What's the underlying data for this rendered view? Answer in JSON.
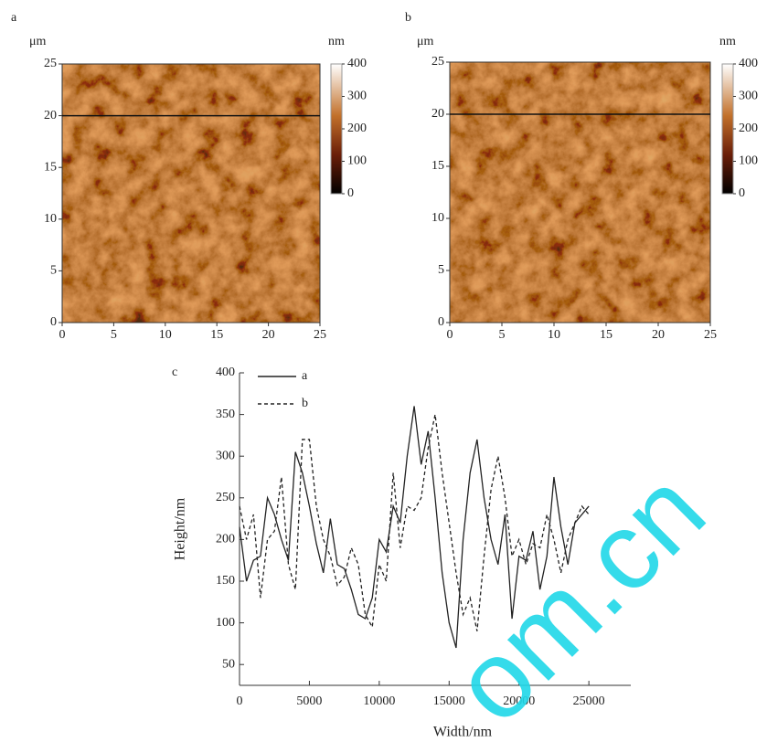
{
  "chart_data": [
    {
      "type": "image",
      "panel": "a",
      "y_unit": "μm",
      "colorbar_unit": "nm",
      "xlim": [
        0,
        25
      ],
      "ylim": [
        0,
        25
      ],
      "xticks": [
        0,
        5,
        10,
        15,
        20,
        25
      ],
      "yticks": [
        0,
        5,
        10,
        15,
        20,
        25
      ],
      "colorbar_lim": [
        0,
        400
      ],
      "colorbar_ticks": [
        0,
        100,
        200,
        300,
        400
      ],
      "profile_y": 20
    },
    {
      "type": "image",
      "panel": "b",
      "y_unit": "μm",
      "colorbar_unit": "nm",
      "xlim": [
        0,
        25
      ],
      "ylim": [
        0,
        25
      ],
      "xticks": [
        0,
        5,
        10,
        15,
        20,
        25
      ],
      "yticks": [
        0,
        5,
        10,
        15,
        20,
        25
      ],
      "colorbar_lim": [
        0,
        400
      ],
      "colorbar_ticks": [
        0,
        100,
        200,
        300,
        400
      ],
      "profile_y": 20
    },
    {
      "type": "line",
      "panel": "c",
      "x_label": "Width/nm",
      "y_label": "Height/nm",
      "xlim": [
        0,
        28000
      ],
      "ylim": [
        25,
        400
      ],
      "xticks": [
        0,
        5000,
        10000,
        15000,
        20000,
        25000
      ],
      "yticks": [
        50,
        100,
        150,
        200,
        250,
        300,
        350,
        400
      ],
      "x": [
        0,
        500,
        1000,
        1500,
        2000,
        2500,
        3000,
        3500,
        4000,
        4500,
        5000,
        5500,
        6000,
        6500,
        7000,
        7500,
        8000,
        8500,
        9000,
        9500,
        10000,
        10500,
        11000,
        11500,
        12000,
        12500,
        13000,
        13500,
        14000,
        14500,
        15000,
        15500,
        16000,
        16500,
        17000,
        17500,
        18000,
        18500,
        19000,
        19500,
        20000,
        20500,
        21000,
        21500,
        22000,
        22500,
        23000,
        23500,
        24000,
        24500,
        25000
      ],
      "series": [
        {
          "name": "a",
          "color": "#222222",
          "dash": false,
          "values": [
            215,
            150,
            175,
            180,
            250,
            230,
            200,
            175,
            305,
            280,
            240,
            195,
            160,
            225,
            170,
            165,
            140,
            110,
            105,
            130,
            200,
            185,
            240,
            220,
            300,
            360,
            290,
            330,
            250,
            160,
            100,
            70,
            200,
            280,
            320,
            250,
            200,
            170,
            230,
            105,
            180,
            175,
            210,
            140,
            180,
            275,
            215,
            170,
            220,
            230,
            240
          ]
        },
        {
          "name": "b",
          "color": "#222222",
          "dash": true,
          "values": [
            240,
            200,
            230,
            130,
            200,
            210,
            275,
            170,
            140,
            320,
            320,
            240,
            200,
            180,
            145,
            155,
            190,
            170,
            110,
            95,
            170,
            150,
            280,
            190,
            240,
            235,
            250,
            310,
            350,
            280,
            220,
            160,
            110,
            130,
            90,
            180,
            260,
            300,
            250,
            180,
            200,
            170,
            195,
            190,
            230,
            200,
            160,
            200,
            220,
            240,
            230
          ]
        }
      ]
    }
  ],
  "watermark": "om.cn"
}
